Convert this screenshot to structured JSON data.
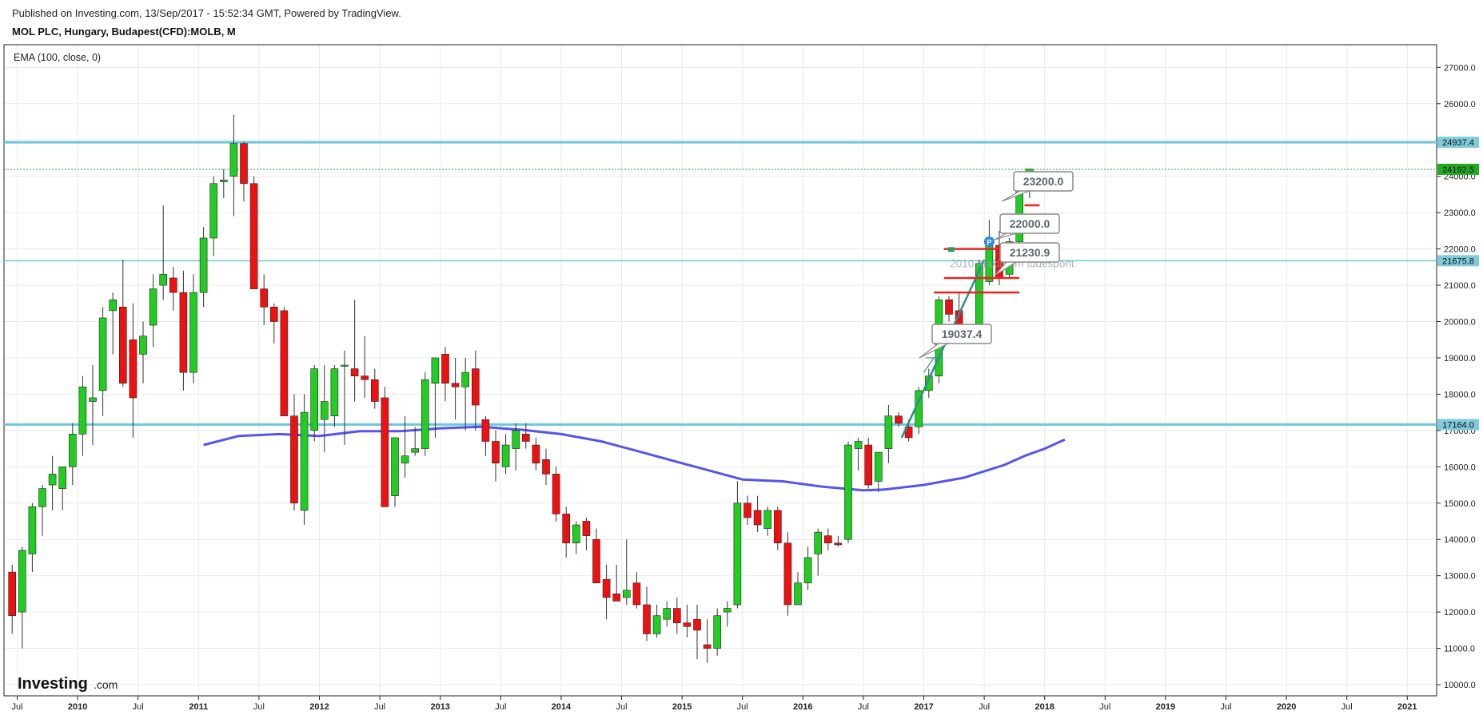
{
  "header": {
    "published": "Published on Investing.com, 13/Sep/2017 - 15:52:34 GMT, Powered by TradingView.",
    "title": "MOL PLC, Hungary, Budapest(CFD):MOLB, M"
  },
  "indicator_label": "EMA (100, close, 0)",
  "watermark": {
    "brand": "Investing",
    "suffix": ".com"
  },
  "colors": {
    "up": "#22cc22",
    "down": "#ee1111",
    "wick": "#333333",
    "ema": "#5555ee",
    "hline": "#6ec6d9",
    "last": "#22aa22",
    "grid": "#e9e9e9",
    "trend": "#2a8f8f",
    "red_level": "#ee2222"
  },
  "chart_data": {
    "type": "candlestick",
    "title": "MOL PLC, Hungary, Budapest(CFD):MOLB, M",
    "interval": "monthly",
    "y_ticks": [
      "10000.0",
      "11000.0",
      "12000.0",
      "13000.0",
      "14000.0",
      "15000.0",
      "16000.0",
      "17000.0",
      "18000.0",
      "19000.0",
      "20000.0",
      "21000.0",
      "22000.0",
      "23000.0",
      "24000.0",
      "25000.0",
      "26000.0",
      "27000.0"
    ],
    "ylim": [
      9700,
      27500
    ],
    "x_labels": [
      {
        "label": "Jul",
        "pos": 0
      },
      {
        "label": "2010",
        "pos": 6
      },
      {
        "label": "Jul",
        "pos": 12
      },
      {
        "label": "2011",
        "pos": 18
      },
      {
        "label": "Jul",
        "pos": 24
      },
      {
        "label": "2012",
        "pos": 30
      },
      {
        "label": "Jul",
        "pos": 36
      },
      {
        "label": "2013",
        "pos": 42
      },
      {
        "label": "Jul",
        "pos": 48
      },
      {
        "label": "2014",
        "pos": 54
      },
      {
        "label": "Jul",
        "pos": 60
      },
      {
        "label": "2015",
        "pos": 66
      },
      {
        "label": "Jul",
        "pos": 72
      },
      {
        "label": "2016",
        "pos": 78
      },
      {
        "label": "Jul",
        "pos": 84
      },
      {
        "label": "2017",
        "pos": 90
      },
      {
        "label": "Jul",
        "pos": 96
      },
      {
        "label": "2018",
        "pos": 102
      },
      {
        "label": "Jul",
        "pos": 108
      },
      {
        "label": "2019",
        "pos": 114
      },
      {
        "label": "Jul",
        "pos": 120
      },
      {
        "label": "2020",
        "pos": 126
      },
      {
        "label": "Jul",
        "pos": 132
      },
      {
        "label": "2021",
        "pos": 138
      }
    ],
    "x_slots": 141,
    "candles": [
      [
        -0.5,
        13100,
        13300,
        11400,
        11900
      ],
      [
        0.5,
        12000,
        13800,
        11000,
        13700
      ],
      [
        1.5,
        13600,
        15000,
        13100,
        14900
      ],
      [
        2.5,
        14900,
        15500,
        14100,
        15400
      ],
      [
        3.5,
        15500,
        16300,
        14800,
        15800
      ],
      [
        4.5,
        15400,
        16000,
        14800,
        16000
      ],
      [
        5.5,
        16000,
        17200,
        15500,
        16900
      ],
      [
        6.5,
        16900,
        18500,
        16300,
        18200
      ],
      [
        7.5,
        17800,
        18800,
        16600,
        17900
      ],
      [
        8.5,
        18100,
        20400,
        17400,
        20100
      ],
      [
        9.5,
        20300,
        20800,
        19100,
        20600
      ],
      [
        10.5,
        20400,
        21700,
        18200,
        18300
      ],
      [
        11.5,
        19500,
        20500,
        16800,
        17900
      ],
      [
        12.5,
        19100,
        20000,
        18300,
        19600
      ],
      [
        13.5,
        19900,
        21300,
        19300,
        20900
      ],
      [
        14.5,
        21000,
        23200,
        20600,
        21300
      ],
      [
        15.5,
        21200,
        21500,
        20300,
        20800
      ],
      [
        16.5,
        20800,
        21400,
        18100,
        18600
      ],
      [
        17.5,
        18600,
        21300,
        18300,
        20800
      ],
      [
        18.5,
        20800,
        22600,
        20400,
        22300
      ],
      [
        19.5,
        22300,
        24000,
        21800,
        23800
      ],
      [
        20.5,
        23850,
        24200,
        23400,
        23900
      ],
      [
        21.5,
        24000,
        25700,
        22900,
        24900
      ],
      [
        22.5,
        24900,
        24950,
        23300,
        23800
      ],
      [
        23.5,
        23800,
        24000,
        20900,
        20900
      ],
      [
        24.5,
        20900,
        21300,
        19900,
        20400
      ],
      [
        25.5,
        20400,
        20500,
        19400,
        20000
      ],
      [
        26.5,
        20300,
        20400,
        17500,
        17400
      ],
      [
        27.5,
        17400,
        18000,
        14800,
        15000
      ],
      [
        28.5,
        14800,
        18000,
        14400,
        17500
      ],
      [
        29.5,
        17000,
        18800,
        16700,
        18700
      ],
      [
        30.5,
        17300,
        18800,
        16400,
        17800
      ],
      [
        31.5,
        17400,
        18800,
        17100,
        18700
      ],
      [
        32.5,
        18800,
        19200,
        16600,
        18800
      ],
      [
        33.5,
        18700,
        20600,
        17800,
        18500
      ],
      [
        34.5,
        18500,
        19600,
        17900,
        18400
      ],
      [
        35.5,
        18400,
        18700,
        17600,
        17800
      ],
      [
        36.5,
        17900,
        18200,
        14900,
        14900
      ],
      [
        37.5,
        15200,
        16800,
        14900,
        16800
      ],
      [
        38.5,
        16100,
        17400,
        15700,
        16300
      ],
      [
        39.5,
        16400,
        17100,
        16300,
        16500
      ],
      [
        40.5,
        16500,
        18600,
        16300,
        18400
      ],
      [
        41.5,
        18300,
        19000,
        16800,
        19000
      ],
      [
        42.5,
        19100,
        19300,
        17800,
        18300
      ],
      [
        43.5,
        18300,
        19000,
        17300,
        18200
      ],
      [
        44.5,
        18200,
        19000,
        17000,
        18600
      ],
      [
        45.5,
        18700,
        19200,
        17000,
        17700
      ],
      [
        46.5,
        17300,
        17400,
        16300,
        16700
      ],
      [
        47.5,
        16700,
        17000,
        15600,
        16100
      ],
      [
        48.5,
        16000,
        16900,
        15800,
        16600
      ],
      [
        49.5,
        16500,
        17200,
        15900,
        17000
      ],
      [
        50.5,
        16900,
        17200,
        16500,
        16700
      ],
      [
        51.5,
        16600,
        16800,
        15900,
        16100
      ],
      [
        52.5,
        16200,
        16500,
        15500,
        15800
      ],
      [
        53.5,
        15800,
        16000,
        14500,
        14700
      ],
      [
        54.5,
        14700,
        14900,
        13500,
        13900
      ],
      [
        55.5,
        13900,
        14500,
        13600,
        14400
      ],
      [
        56.5,
        14500,
        14600,
        13700,
        14100
      ],
      [
        57.5,
        14000,
        14300,
        12800,
        12800
      ],
      [
        58.5,
        12900,
        13300,
        11800,
        12400
      ],
      [
        59.5,
        12500,
        13300,
        12300,
        12300
      ],
      [
        60.5,
        12400,
        14000,
        12200,
        12600
      ],
      [
        61.5,
        12800,
        13100,
        12100,
        12200
      ],
      [
        62.5,
        12200,
        12700,
        11200,
        11400
      ],
      [
        63.5,
        11400,
        12200,
        11300,
        11900
      ],
      [
        64.5,
        11800,
        12300,
        11600,
        12100
      ],
      [
        65.5,
        12100,
        12400,
        11400,
        11700
      ],
      [
        66.5,
        11700,
        12200,
        11300,
        11600
      ],
      [
        67.5,
        11800,
        12200,
        10700,
        11500
      ],
      [
        68.5,
        11100,
        11800,
        10600,
        11000
      ],
      [
        69.5,
        11000,
        12100,
        10800,
        11900
      ],
      [
        70.5,
        12000,
        12300,
        11600,
        12100
      ],
      [
        71.5,
        12200,
        15600,
        12100,
        15000
      ],
      [
        72.5,
        15000,
        15200,
        14400,
        14600
      ],
      [
        73.5,
        14800,
        15200,
        14200,
        14400
      ],
      [
        74.5,
        14300,
        14900,
        14100,
        14800
      ],
      [
        75.5,
        14800,
        14900,
        13700,
        13900
      ],
      [
        76.5,
        13900,
        14200,
        11900,
        12200
      ],
      [
        77.5,
        12200,
        13100,
        12200,
        12800
      ],
      [
        78.5,
        12800,
        13800,
        12600,
        13500
      ],
      [
        79.5,
        13600,
        14300,
        13000,
        14200
      ],
      [
        80.5,
        14100,
        14300,
        13700,
        13900
      ],
      [
        81.5,
        13900,
        14100,
        13800,
        13850
      ],
      [
        82.5,
        14000,
        16700,
        13900,
        16600
      ],
      [
        83.5,
        16500,
        16800,
        15900,
        16700
      ],
      [
        84.5,
        16600,
        16800,
        15400,
        15500
      ],
      [
        85.5,
        15600,
        16300,
        15300,
        16400
      ],
      [
        86.5,
        16500,
        17700,
        16100,
        17400
      ],
      [
        87.5,
        17400,
        17500,
        17100,
        17200
      ],
      [
        88.5,
        17100,
        17300,
        16700,
        16800
      ],
      [
        89.5,
        17100,
        18200,
        16900,
        18100
      ],
      [
        90.5,
        18100,
        18700,
        17900,
        18500
      ],
      [
        91.5,
        18500,
        20700,
        18300,
        20600
      ],
      [
        92.5,
        20600,
        20700,
        20000,
        20200
      ],
      [
        93.5,
        20300,
        20800,
        19800,
        19900
      ],
      [
        94.5,
        19800,
        19900,
        19700,
        19700
      ],
      [
        95.5,
        19900,
        21700,
        19700,
        21600
      ],
      [
        96.5,
        21100,
        22800,
        21000,
        22300
      ],
      [
        97.5,
        22100,
        22500,
        21000,
        21200
      ],
      [
        98.5,
        21300,
        22300,
        21200,
        22200
      ],
      [
        99.5,
        22200,
        24000,
        21900,
        23800
      ],
      [
        100.5,
        23600,
        24200,
        23400,
        24200
      ]
    ],
    "ema_series": {
      "name": "EMA (100, close, 0)",
      "points": [
        [
          18.5,
          16600
        ],
        [
          22,
          16850
        ],
        [
          26,
          16900
        ],
        [
          30,
          16850
        ],
        [
          34,
          16980
        ],
        [
          38,
          16980
        ],
        [
          42,
          17060
        ],
        [
          46,
          17100
        ],
        [
          50,
          17020
        ],
        [
          54,
          16900
        ],
        [
          58,
          16700
        ],
        [
          62,
          16400
        ],
        [
          66,
          16100
        ],
        [
          70,
          15800
        ],
        [
          72,
          15650
        ],
        [
          76,
          15600
        ],
        [
          80,
          15450
        ],
        [
          84,
          15350
        ],
        [
          86,
          15370
        ],
        [
          90,
          15500
        ],
        [
          94,
          15700
        ],
        [
          98,
          16050
        ],
        [
          100,
          16300
        ],
        [
          102,
          16500
        ],
        [
          104,
          16750
        ]
      ]
    },
    "horizontal_levels": [
      {
        "value": 24937.4,
        "label": "24937.4",
        "style": "solid-thick"
      },
      {
        "value": 24192.5,
        "label": "24192.5",
        "style": "dotted-last"
      },
      {
        "value": 21675.8,
        "label": "21675.8",
        "style": "solid-thin"
      },
      {
        "value": 17164.0,
        "label": "17164.0",
        "style": "solid-thick"
      }
    ],
    "callouts": [
      {
        "text": "23200.0",
        "price": 23200
      },
      {
        "text": "22000.0",
        "price": 22000
      },
      {
        "text": "21230.9",
        "price": 21230.9
      },
      {
        "text": "19037.4",
        "price": 19037.4
      }
    ],
    "faded_annotation": "2010 maximum tudespont",
    "pivot_marker": "P"
  }
}
